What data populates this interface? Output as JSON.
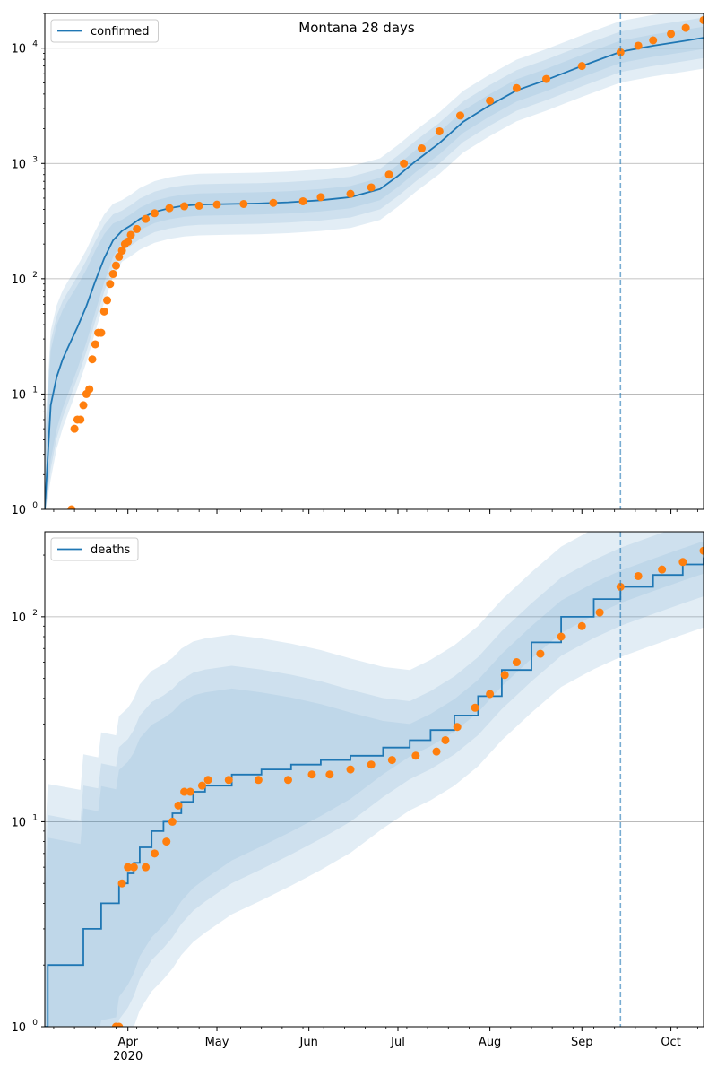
{
  "figure": {
    "title": "Montana 28 days"
  },
  "chart_data": [
    {
      "type": "line",
      "panel": "confirmed",
      "yscale": "log",
      "ylim": [
        1,
        20000
      ],
      "xlim": [
        "2020-03-04",
        "2020-10-12"
      ],
      "grid": "y-major",
      "legend": {
        "position": "top-left",
        "entries": [
          "confirmed"
        ]
      },
      "y_tick_labels": [
        {
          "value": 1,
          "base": "10",
          "exp": "0"
        },
        {
          "value": 10,
          "base": "10",
          "exp": "1"
        },
        {
          "value": 100,
          "base": "10",
          "exp": "2"
        },
        {
          "value": 1000,
          "base": "10",
          "exp": "3"
        },
        {
          "value": 10000,
          "base": "10",
          "exp": "4"
        }
      ],
      "forecast_start": "2020-09-14",
      "series": [
        {
          "name": "confirmed",
          "kind": "model",
          "color": "#1f77b4",
          "x": [
            "2020-03-04",
            "2020-03-06",
            "2020-03-08",
            "2020-03-10",
            "2020-03-12",
            "2020-03-15",
            "2020-03-18",
            "2020-03-21",
            "2020-03-24",
            "2020-03-27",
            "2020-03-30",
            "2020-04-02",
            "2020-04-05",
            "2020-04-10",
            "2020-04-15",
            "2020-04-20",
            "2020-04-25",
            "2020-05-05",
            "2020-05-15",
            "2020-05-25",
            "2020-06-05",
            "2020-06-15",
            "2020-06-25",
            "2020-07-01",
            "2020-07-07",
            "2020-07-15",
            "2020-07-23",
            "2020-08-01",
            "2020-08-10",
            "2020-08-20",
            "2020-09-01",
            "2020-09-14",
            "2020-09-25",
            "2020-10-05",
            "2020-10-12"
          ],
          "values": [
            1,
            8,
            14,
            20,
            26,
            38,
            58,
            95,
            150,
            215,
            260,
            290,
            330,
            380,
            410,
            430,
            440,
            445,
            450,
            460,
            480,
            510,
            600,
            780,
            1050,
            1500,
            2300,
            3200,
            4300,
            5300,
            7000,
            9300,
            10500,
            11500,
            12300
          ]
        },
        {
          "name": "confirmed",
          "kind": "observed",
          "color": "#ff7f0e",
          "x": [
            "2020-03-13",
            "2020-03-14",
            "2020-03-15",
            "2020-03-16",
            "2020-03-17",
            "2020-03-18",
            "2020-03-19",
            "2020-03-20",
            "2020-03-21",
            "2020-03-22",
            "2020-03-23",
            "2020-03-24",
            "2020-03-25",
            "2020-03-26",
            "2020-03-27",
            "2020-03-28",
            "2020-03-29",
            "2020-03-30",
            "2020-03-31",
            "2020-04-01",
            "2020-04-02",
            "2020-04-04",
            "2020-04-07",
            "2020-04-10",
            "2020-04-15",
            "2020-04-20",
            "2020-04-25",
            "2020-05-01",
            "2020-05-10",
            "2020-05-20",
            "2020-05-30",
            "2020-06-05",
            "2020-06-15",
            "2020-06-22",
            "2020-06-28",
            "2020-07-03",
            "2020-07-09",
            "2020-07-15",
            "2020-07-22",
            "2020-08-01",
            "2020-08-10",
            "2020-08-20",
            "2020-09-01",
            "2020-09-14",
            "2020-09-20",
            "2020-09-25",
            "2020-10-01",
            "2020-10-06",
            "2020-10-12"
          ],
          "values": [
            1,
            5,
            6,
            6,
            8,
            10,
            11,
            20,
            27,
            34,
            34,
            52,
            65,
            90,
            110,
            130,
            155,
            175,
            200,
            210,
            240,
            270,
            330,
            370,
            410,
            425,
            430,
            440,
            445,
            455,
            470,
            510,
            545,
            620,
            800,
            1000,
            1350,
            1900,
            2600,
            3500,
            4500,
            5400,
            7000,
            9200,
            10500,
            11700,
            13300,
            15000,
            17500
          ]
        }
      ]
    },
    {
      "type": "line",
      "panel": "deaths",
      "yscale": "log",
      "ylim": [
        1,
        260
      ],
      "xlim": [
        "2020-03-04",
        "2020-10-12"
      ],
      "grid": "y-major",
      "legend": {
        "position": "top-left",
        "entries": [
          "deaths"
        ]
      },
      "y_tick_labels": [
        {
          "value": 1,
          "base": "10",
          "exp": "0"
        },
        {
          "value": 10,
          "base": "10",
          "exp": "1"
        },
        {
          "value": 100,
          "base": "10",
          "exp": "2"
        }
      ],
      "forecast_start": "2020-09-14",
      "series": [
        {
          "name": "deaths",
          "kind": "model",
          "color": "#1f77b4",
          "x": [
            "2020-03-04",
            "2020-03-05",
            "2020-03-16",
            "2020-03-17",
            "2020-03-22",
            "2020-03-23",
            "2020-03-28",
            "2020-03-29",
            "2020-04-01",
            "2020-04-03",
            "2020-04-05",
            "2020-04-09",
            "2020-04-13",
            "2020-04-16",
            "2020-04-19",
            "2020-04-23",
            "2020-04-27",
            "2020-05-06",
            "2020-05-16",
            "2020-05-26",
            "2020-06-05",
            "2020-06-15",
            "2020-06-26",
            "2020-07-05",
            "2020-07-12",
            "2020-07-20",
            "2020-07-28",
            "2020-08-05",
            "2020-08-15",
            "2020-08-25",
            "2020-09-05",
            "2020-09-14",
            "2020-09-25",
            "2020-10-05",
            "2020-10-12"
          ],
          "values": [
            1,
            2,
            2,
            3,
            3,
            4,
            4,
            5,
            5.6,
            6.3,
            7.5,
            9,
            10,
            11,
            12.5,
            14,
            15,
            17,
            18,
            19,
            20,
            21,
            23,
            25,
            28,
            33,
            41,
            55,
            75,
            100,
            122,
            140,
            160,
            180,
            195
          ]
        },
        {
          "name": "deaths",
          "kind": "observed",
          "color": "#ff7f0e",
          "x": [
            "2020-03-28",
            "2020-03-29",
            "2020-03-30",
            "2020-04-01",
            "2020-04-03",
            "2020-04-07",
            "2020-04-10",
            "2020-04-14",
            "2020-04-16",
            "2020-04-18",
            "2020-04-20",
            "2020-04-22",
            "2020-04-26",
            "2020-04-28",
            "2020-05-05",
            "2020-05-15",
            "2020-05-25",
            "2020-06-02",
            "2020-06-08",
            "2020-06-15",
            "2020-06-22",
            "2020-06-29",
            "2020-07-07",
            "2020-07-14",
            "2020-07-17",
            "2020-07-21",
            "2020-07-27",
            "2020-08-01",
            "2020-08-06",
            "2020-08-10",
            "2020-08-18",
            "2020-08-25",
            "2020-09-01",
            "2020-09-07",
            "2020-09-14",
            "2020-09-20",
            "2020-09-28",
            "2020-10-05",
            "2020-10-12"
          ],
          "values": [
            1,
            1,
            5,
            6,
            6,
            6,
            7,
            8,
            10,
            12,
            14,
            14,
            15,
            16,
            16,
            16,
            16,
            17,
            17,
            18,
            19,
            20,
            21,
            22,
            25,
            29,
            36,
            42,
            52,
            60,
            66,
            80,
            90,
            105,
            140,
            158,
            170,
            185,
            210
          ]
        }
      ]
    }
  ],
  "x_axis": {
    "tick_labels": [
      {
        "date": "2020-04-01",
        "label": "Apr",
        "sublabel": "2020"
      },
      {
        "date": "2020-05-01",
        "label": "May",
        "sublabel": ""
      },
      {
        "date": "2020-06-01",
        "label": "Jun",
        "sublabel": ""
      },
      {
        "date": "2020-07-01",
        "label": "Jul",
        "sublabel": ""
      },
      {
        "date": "2020-08-01",
        "label": "Aug",
        "sublabel": ""
      },
      {
        "date": "2020-09-01",
        "label": "Sep",
        "sublabel": ""
      },
      {
        "date": "2020-10-01",
        "label": "Oct",
        "sublabel": ""
      }
    ]
  }
}
